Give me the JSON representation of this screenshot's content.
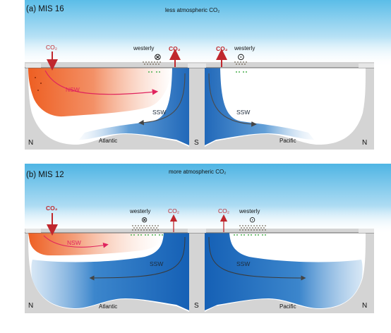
{
  "panels": [
    {
      "label": "(a) MIS 16",
      "atmosphere": "less atmospheric CO₂",
      "atlantic": {
        "co2": "CO₂",
        "co2_out": "CO₂",
        "westerly": "westerly",
        "westerly_symbol": "⊗",
        "water_mass": "NSW",
        "ssw": "SSW",
        "basin": "Atlantic"
      },
      "pacific": {
        "co2": "CO₂",
        "westerly": "westerly",
        "westerly_symbol": "⊙",
        "ssw": "SSW",
        "basin": "Pacific"
      },
      "north_left": "N",
      "south": "S",
      "north_right": "N"
    },
    {
      "label": "(b) MIS 12",
      "atmosphere": "more atmospheric CO₂",
      "atlantic": {
        "co2": "CO₂",
        "co2_out": "CO₂",
        "westerly": "westerly",
        "westerly_symbol": "⊗",
        "water_mass": "NSW",
        "ssw": "SSW",
        "basin": "Atlantic"
      },
      "pacific": {
        "co2": "CO₂",
        "westerly": "westerly",
        "westerly_symbol": "⊙",
        "ssw": "SSW",
        "basin": "Pacific"
      },
      "north_left": "N",
      "south": "S",
      "north_right": "N"
    }
  ],
  "colors": {
    "sky": "#5bbde8",
    "nsw": "#ef6a30",
    "ssw": "#1a6fbf",
    "co2": "#c0272d",
    "land": "#d4d4d4"
  }
}
